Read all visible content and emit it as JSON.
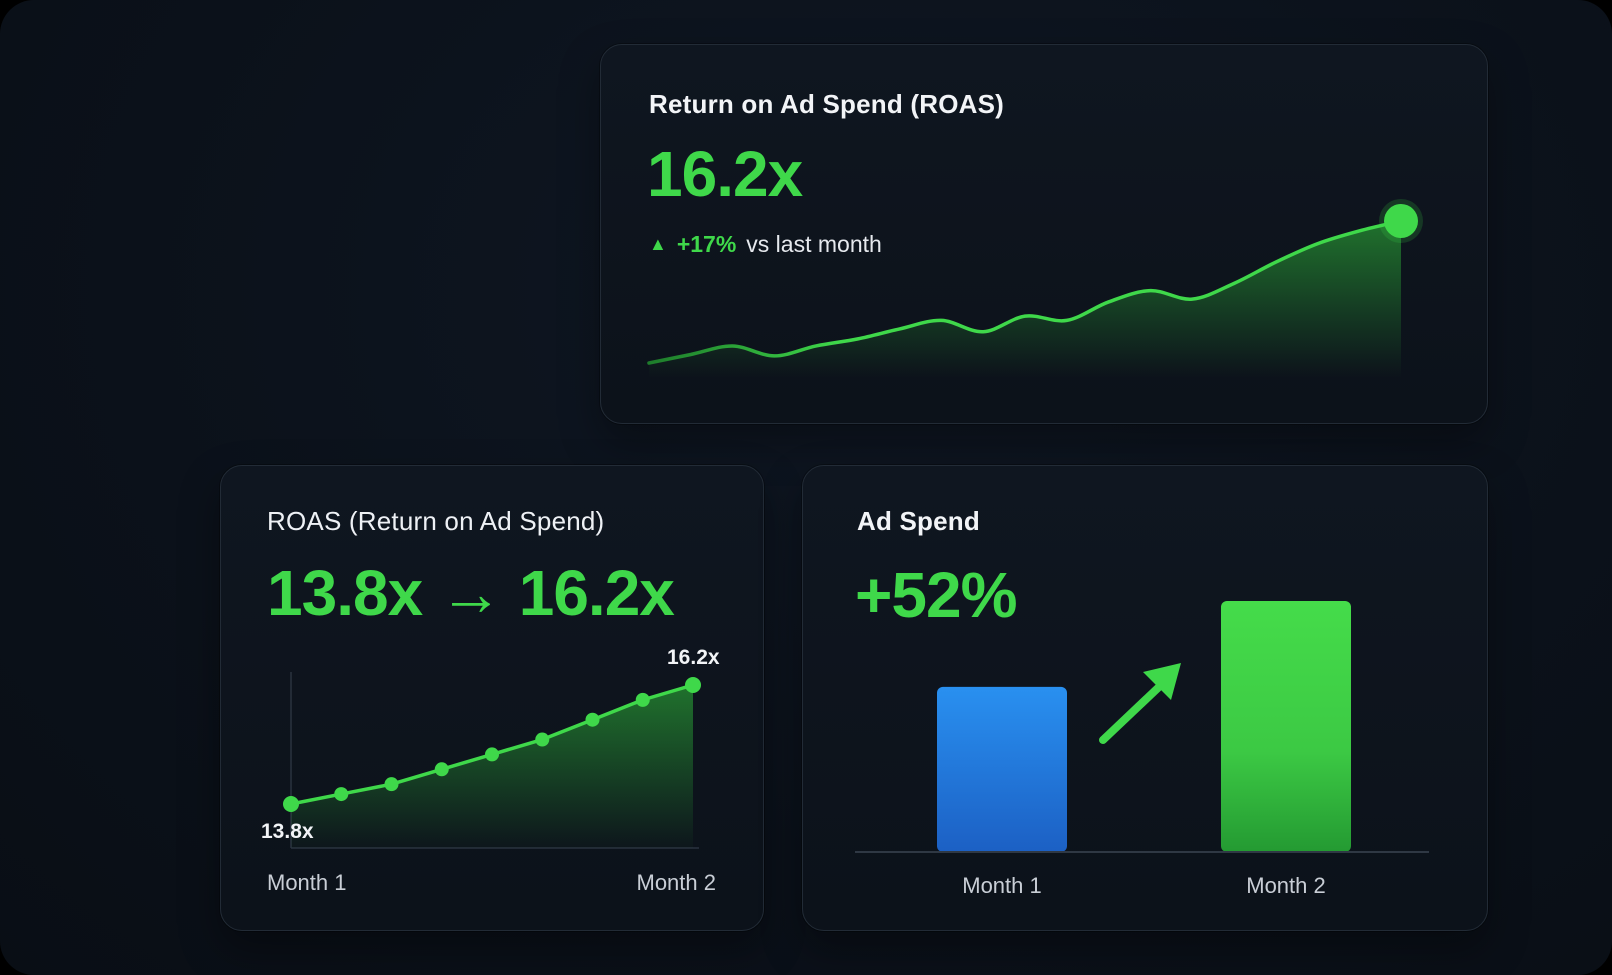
{
  "colors": {
    "accent_green": "#3fd84a",
    "bar_blue": "#2b86e8",
    "bar_green": "#40d545",
    "card_bg": "#0f1620",
    "page_bg": "#0b111a"
  },
  "cards": {
    "top": {
      "title": "Return on Ad Spend (ROAS)",
      "value": "16.2x",
      "delta_icon": "up-triangle-icon",
      "delta_symbol": "▲",
      "delta_pct": "+17%",
      "delta_text": "vs last month"
    },
    "left": {
      "title": "ROAS (Return on Ad Spend)",
      "value": "13.8x → 16.2x",
      "start_label": "13.8x",
      "end_label": "16.2x"
    },
    "right": {
      "title": "Ad Spend",
      "value": "+52%",
      "arrow_icon": "arrow-up-right-icon"
    }
  },
  "chart_data": [
    {
      "id": "roas-trend",
      "type": "area",
      "title": "Return on Ad Spend (ROAS)",
      "xlabel": "",
      "ylabel": "",
      "grid": false,
      "y": [
        0.0,
        0.06,
        0.12,
        0.05,
        0.12,
        0.17,
        0.24,
        0.3,
        0.22,
        0.33,
        0.3,
        0.43,
        0.51,
        0.45,
        0.56,
        0.71,
        0.84,
        0.93,
        1.0
      ],
      "ylim": [
        0,
        1
      ],
      "highlight_last_point": true
    },
    {
      "id": "roas-monthly",
      "type": "line",
      "title": "ROAS (Return on Ad Spend)",
      "categories": [
        "Month 1",
        "Month 2"
      ],
      "y": [
        13.8,
        14.0,
        14.2,
        14.5,
        14.8,
        15.1,
        15.5,
        15.9,
        16.2
      ],
      "start_label": "13.8x",
      "end_label": "16.2x",
      "ylim": [
        13.8,
        16.2
      ],
      "grid": false
    },
    {
      "id": "ad-spend",
      "type": "bar",
      "title": "Ad Spend",
      "categories": [
        "Month 1",
        "Month 2"
      ],
      "values": [
        100,
        152
      ],
      "colors": [
        "#2b86e8",
        "#40d545"
      ],
      "change_label": "+52%",
      "ylim": [
        0,
        152
      ],
      "grid": false
    }
  ]
}
